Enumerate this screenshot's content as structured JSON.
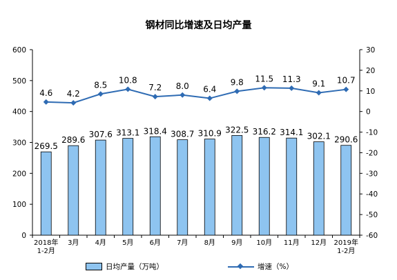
{
  "chart_data": {
    "type": "bar",
    "title": "钢材同比增速及日均产量",
    "categories": [
      "2018年\n1-2月",
      "3月",
      "4月",
      "5月",
      "6月",
      "7月",
      "8月",
      "9月",
      "10月",
      "11月",
      "12月",
      "2019年\n1-2月"
    ],
    "series": [
      {
        "name": "日均产量（万吨）",
        "type": "bar",
        "axis": "left",
        "values": [
          269.5,
          289.6,
          307.6,
          313.1,
          318.4,
          308.7,
          310.9,
          322.5,
          316.2,
          314.1,
          302.1,
          290.6
        ],
        "labels": [
          "269.5",
          "289.6",
          "307.6",
          "313.1",
          "318.4",
          "308.7",
          "310.9",
          "322.5",
          "316.2",
          "314.1",
          "302.1",
          "290.6"
        ]
      },
      {
        "name": "增速（%）",
        "type": "line",
        "axis": "right",
        "values": [
          4.6,
          4.2,
          8.5,
          10.8,
          7.2,
          8.0,
          6.4,
          9.8,
          11.5,
          11.3,
          9.1,
          10.7
        ],
        "labels": [
          "4.6",
          "4.2",
          "8.5",
          "10.8",
          "7.2",
          "8.0",
          "6.4",
          "9.8",
          "11.5",
          "11.3",
          "9.1",
          "10.7"
        ]
      }
    ],
    "y_left": {
      "lim": [
        0,
        600
      ],
      "ticks": [
        "0",
        "100",
        "200",
        "300",
        "400",
        "500",
        "600"
      ]
    },
    "y_right": {
      "lim": [
        -60,
        30
      ],
      "ticks": [
        "-60",
        "-50",
        "-40",
        "-30",
        "-20",
        "-10",
        "0",
        "10",
        "20",
        "30"
      ]
    },
    "grid": false,
    "legend": "bottom",
    "colors": {
      "bar": "#8ec4f0",
      "bar_border": "#000000",
      "line": "#2e6bb3",
      "axis": "#000000"
    }
  },
  "legend": {
    "bar_label": "日均产量（万吨）",
    "line_label": "增速（%）"
  }
}
